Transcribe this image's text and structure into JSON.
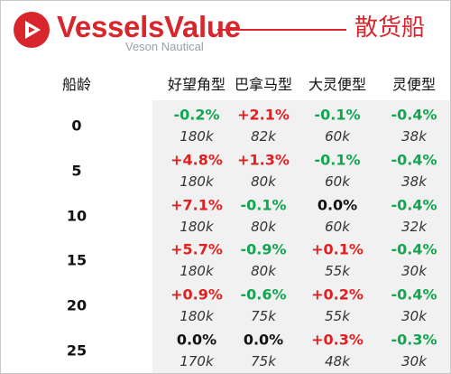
{
  "brand": {
    "name": "VesselsValue",
    "subtitle": "Veson Nautical",
    "segment": "散货船"
  },
  "colors": {
    "brand_red": "#d9262c",
    "positive": "#e02020",
    "negative": "#12a650",
    "neutral": "#111111",
    "shade": "#f1f1f1"
  },
  "table": {
    "age_header": "船龄",
    "columns": [
      "好望角型",
      "巴拿马型",
      "大灵便型",
      "灵便型"
    ],
    "rows": [
      {
        "age": "0",
        "changes": [
          "-0.2%",
          "+2.1%",
          "-0.1%",
          "-0.4%"
        ],
        "values": [
          "180k",
          "82k",
          "60k",
          "38k"
        ]
      },
      {
        "age": "5",
        "changes": [
          "+4.8%",
          "+1.3%",
          "-0.1%",
          "-0.4%"
        ],
        "values": [
          "180k",
          "80k",
          "60k",
          "38k"
        ]
      },
      {
        "age": "10",
        "changes": [
          "+7.1%",
          "-0.1%",
          "0.0%",
          "-0.4%"
        ],
        "values": [
          "180k",
          "80k",
          "60k",
          "32k"
        ]
      },
      {
        "age": "15",
        "changes": [
          "+5.7%",
          "-0.9%",
          "+0.1%",
          "-0.4%"
        ],
        "values": [
          "180k",
          "80k",
          "55k",
          "30k"
        ]
      },
      {
        "age": "20",
        "changes": [
          "+0.9%",
          "-0.6%",
          "+0.2%",
          "-0.4%"
        ],
        "values": [
          "180k",
          "75k",
          "55k",
          "30k"
        ]
      },
      {
        "age": "25",
        "changes": [
          "0.0%",
          "0.0%",
          "+0.3%",
          "-0.3%"
        ],
        "values": [
          "170k",
          "75k",
          "48k",
          "30k"
        ]
      }
    ]
  }
}
